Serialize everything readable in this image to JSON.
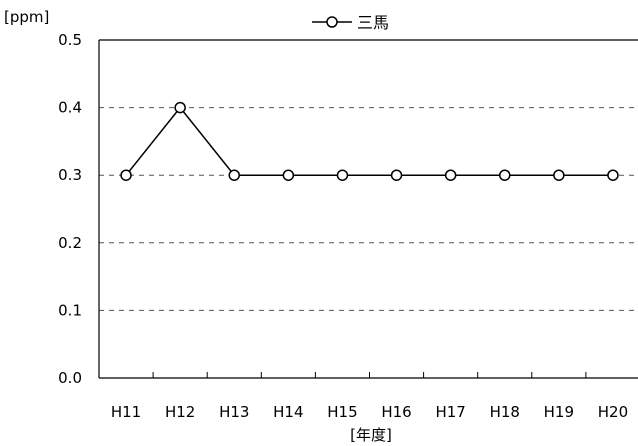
{
  "chart_data": {
    "type": "line",
    "title": "",
    "ylabel": "[ppm]",
    "xlabel": "[年度]",
    "categories": [
      "H11",
      "H12",
      "H13",
      "H14",
      "H15",
      "H16",
      "H17",
      "H18",
      "H19",
      "H20"
    ],
    "series": [
      {
        "name": "三馬",
        "values": [
          0.3,
          0.4,
          0.3,
          0.3,
          0.3,
          0.3,
          0.3,
          0.3,
          0.3,
          0.3
        ],
        "color": "#000000",
        "marker": "open-circle"
      }
    ],
    "ylim": [
      0.0,
      0.5
    ],
    "yticks": [
      "0.0",
      "0.1",
      "0.2",
      "0.3",
      "0.4",
      "0.5"
    ],
    "grid": "horizontal-dashed",
    "legend": "top-center"
  }
}
